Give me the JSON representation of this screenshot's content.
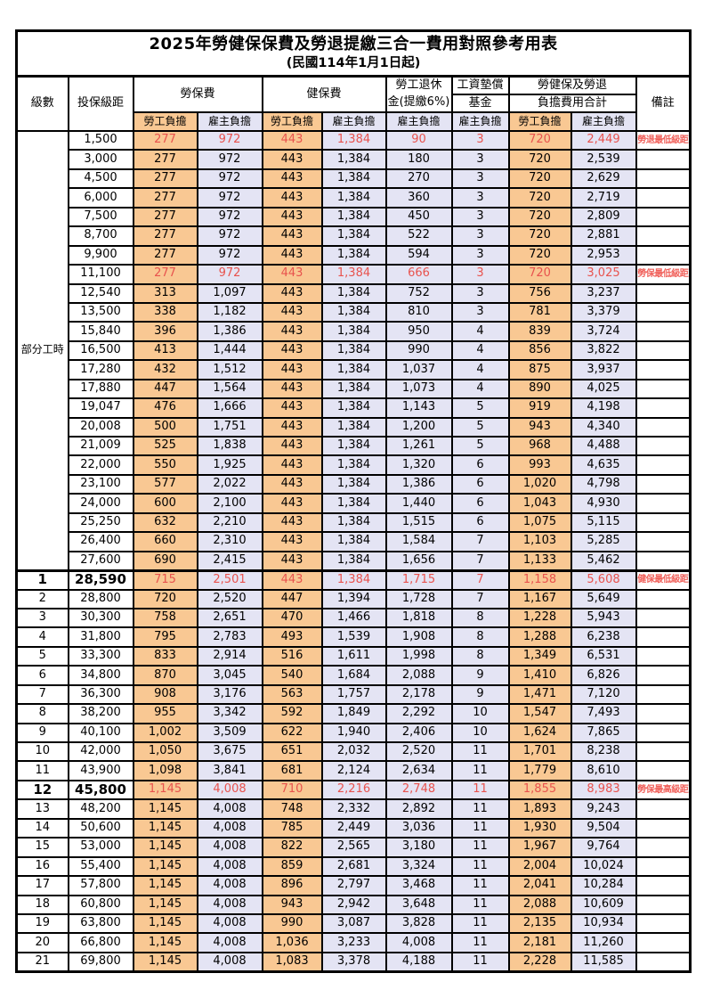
{
  "title": "2025年勞健保保費及勞退提繳三合一費用對照參考用表",
  "subtitle": "(民國114年1月1日起)",
  "colors": {
    "employee_burden_bg": "#F9C893",
    "employer_burden_bg": "#E4E4F4",
    "highlight_red": "#E8534E",
    "note_red": "#F0605A",
    "border": "#000000"
  },
  "header": {
    "level": "級數",
    "bracket": "投保級距",
    "labor_insurance": "勞保費",
    "health_insurance": "健保費",
    "pension_line1": "勞工退休",
    "pension_line2": "金(提繳6%)",
    "wage_fund_line1": "工資墊償",
    "wage_fund_line2": "基金",
    "total_line1": "勞健保及勞退",
    "total_line2": "負擔費用合計",
    "remark": "備註",
    "employee": "勞工負擔",
    "employer": "雇主負擔"
  },
  "part_time_label": "部分工時",
  "rows": [
    {
      "level": "",
      "bracket": "1,500",
      "li_emp": "277",
      "li_er": "972",
      "hi_emp": "443",
      "hi_er": "1,384",
      "pension": "90",
      "fund": "3",
      "tot_emp": "720",
      "tot_er": "2,449",
      "note": "勞退最低級距",
      "red": true,
      "bold": false
    },
    {
      "level": "",
      "bracket": "3,000",
      "li_emp": "277",
      "li_er": "972",
      "hi_emp": "443",
      "hi_er": "1,384",
      "pension": "180",
      "fund": "3",
      "tot_emp": "720",
      "tot_er": "2,539",
      "note": "",
      "red": false,
      "bold": false
    },
    {
      "level": "",
      "bracket": "4,500",
      "li_emp": "277",
      "li_er": "972",
      "hi_emp": "443",
      "hi_er": "1,384",
      "pension": "270",
      "fund": "3",
      "tot_emp": "720",
      "tot_er": "2,629",
      "note": "",
      "red": false,
      "bold": false
    },
    {
      "level": "",
      "bracket": "6,000",
      "li_emp": "277",
      "li_er": "972",
      "hi_emp": "443",
      "hi_er": "1,384",
      "pension": "360",
      "fund": "3",
      "tot_emp": "720",
      "tot_er": "2,719",
      "note": "",
      "red": false,
      "bold": false
    },
    {
      "level": "",
      "bracket": "7,500",
      "li_emp": "277",
      "li_er": "972",
      "hi_emp": "443",
      "hi_er": "1,384",
      "pension": "450",
      "fund": "3",
      "tot_emp": "720",
      "tot_er": "2,809",
      "note": "",
      "red": false,
      "bold": false
    },
    {
      "level": "",
      "bracket": "8,700",
      "li_emp": "277",
      "li_er": "972",
      "hi_emp": "443",
      "hi_er": "1,384",
      "pension": "522",
      "fund": "3",
      "tot_emp": "720",
      "tot_er": "2,881",
      "note": "",
      "red": false,
      "bold": false
    },
    {
      "level": "",
      "bracket": "9,900",
      "li_emp": "277",
      "li_er": "972",
      "hi_emp": "443",
      "hi_er": "1,384",
      "pension": "594",
      "fund": "3",
      "tot_emp": "720",
      "tot_er": "2,953",
      "note": "",
      "red": false,
      "bold": false
    },
    {
      "level": "",
      "bracket": "11,100",
      "li_emp": "277",
      "li_er": "972",
      "hi_emp": "443",
      "hi_er": "1,384",
      "pension": "666",
      "fund": "3",
      "tot_emp": "720",
      "tot_er": "3,025",
      "note": "勞保最低級距",
      "red": true,
      "bold": false
    },
    {
      "level": "",
      "bracket": "12,540",
      "li_emp": "313",
      "li_er": "1,097",
      "hi_emp": "443",
      "hi_er": "1,384",
      "pension": "752",
      "fund": "3",
      "tot_emp": "756",
      "tot_er": "3,237",
      "note": "",
      "red": false,
      "bold": false
    },
    {
      "level": "",
      "bracket": "13,500",
      "li_emp": "338",
      "li_er": "1,182",
      "hi_emp": "443",
      "hi_er": "1,384",
      "pension": "810",
      "fund": "3",
      "tot_emp": "781",
      "tot_er": "3,379",
      "note": "",
      "red": false,
      "bold": false
    },
    {
      "level": "",
      "bracket": "15,840",
      "li_emp": "396",
      "li_er": "1,386",
      "hi_emp": "443",
      "hi_er": "1,384",
      "pension": "950",
      "fund": "4",
      "tot_emp": "839",
      "tot_er": "3,724",
      "note": "",
      "red": false,
      "bold": false
    },
    {
      "level": "",
      "bracket": "16,500",
      "li_emp": "413",
      "li_er": "1,444",
      "hi_emp": "443",
      "hi_er": "1,384",
      "pension": "990",
      "fund": "4",
      "tot_emp": "856",
      "tot_er": "3,822",
      "note": "",
      "red": false,
      "bold": false
    },
    {
      "level": "",
      "bracket": "17,280",
      "li_emp": "432",
      "li_er": "1,512",
      "hi_emp": "443",
      "hi_er": "1,384",
      "pension": "1,037",
      "fund": "4",
      "tot_emp": "875",
      "tot_er": "3,937",
      "note": "",
      "red": false,
      "bold": false
    },
    {
      "level": "",
      "bracket": "17,880",
      "li_emp": "447",
      "li_er": "1,564",
      "hi_emp": "443",
      "hi_er": "1,384",
      "pension": "1,073",
      "fund": "4",
      "tot_emp": "890",
      "tot_er": "4,025",
      "note": "",
      "red": false,
      "bold": false
    },
    {
      "level": "",
      "bracket": "19,047",
      "li_emp": "476",
      "li_er": "1,666",
      "hi_emp": "443",
      "hi_er": "1,384",
      "pension": "1,143",
      "fund": "5",
      "tot_emp": "919",
      "tot_er": "4,198",
      "note": "",
      "red": false,
      "bold": false
    },
    {
      "level": "",
      "bracket": "20,008",
      "li_emp": "500",
      "li_er": "1,751",
      "hi_emp": "443",
      "hi_er": "1,384",
      "pension": "1,200",
      "fund": "5",
      "tot_emp": "943",
      "tot_er": "4,340",
      "note": "",
      "red": false,
      "bold": false
    },
    {
      "level": "",
      "bracket": "21,009",
      "li_emp": "525",
      "li_er": "1,838",
      "hi_emp": "443",
      "hi_er": "1,384",
      "pension": "1,261",
      "fund": "5",
      "tot_emp": "968",
      "tot_er": "4,488",
      "note": "",
      "red": false,
      "bold": false
    },
    {
      "level": "",
      "bracket": "22,000",
      "li_emp": "550",
      "li_er": "1,925",
      "hi_emp": "443",
      "hi_er": "1,384",
      "pension": "1,320",
      "fund": "6",
      "tot_emp": "993",
      "tot_er": "4,635",
      "note": "",
      "red": false,
      "bold": false
    },
    {
      "level": "",
      "bracket": "23,100",
      "li_emp": "577",
      "li_er": "2,022",
      "hi_emp": "443",
      "hi_er": "1,384",
      "pension": "1,386",
      "fund": "6",
      "tot_emp": "1,020",
      "tot_er": "4,798",
      "note": "",
      "red": false,
      "bold": false
    },
    {
      "level": "",
      "bracket": "24,000",
      "li_emp": "600",
      "li_er": "2,100",
      "hi_emp": "443",
      "hi_er": "1,384",
      "pension": "1,440",
      "fund": "6",
      "tot_emp": "1,043",
      "tot_er": "4,930",
      "note": "",
      "red": false,
      "bold": false
    },
    {
      "level": "",
      "bracket": "25,250",
      "li_emp": "632",
      "li_er": "2,210",
      "hi_emp": "443",
      "hi_er": "1,384",
      "pension": "1,515",
      "fund": "6",
      "tot_emp": "1,075",
      "tot_er": "5,115",
      "note": "",
      "red": false,
      "bold": false
    },
    {
      "level": "",
      "bracket": "26,400",
      "li_emp": "660",
      "li_er": "2,310",
      "hi_emp": "443",
      "hi_er": "1,384",
      "pension": "1,584",
      "fund": "7",
      "tot_emp": "1,103",
      "tot_er": "5,285",
      "note": "",
      "red": false,
      "bold": false
    },
    {
      "level": "",
      "bracket": "27,600",
      "li_emp": "690",
      "li_er": "2,415",
      "hi_emp": "443",
      "hi_er": "1,384",
      "pension": "1,656",
      "fund": "7",
      "tot_emp": "1,133",
      "tot_er": "5,462",
      "note": "",
      "red": false,
      "bold": false
    },
    {
      "level": "1",
      "bracket": "28,590",
      "li_emp": "715",
      "li_er": "2,501",
      "hi_emp": "443",
      "hi_er": "1,384",
      "pension": "1,715",
      "fund": "7",
      "tot_emp": "1,158",
      "tot_er": "5,608",
      "note": "健保最低級距",
      "red": true,
      "bold": true
    },
    {
      "level": "2",
      "bracket": "28,800",
      "li_emp": "720",
      "li_er": "2,520",
      "hi_emp": "447",
      "hi_er": "1,394",
      "pension": "1,728",
      "fund": "7",
      "tot_emp": "1,167",
      "tot_er": "5,649",
      "note": "",
      "red": false,
      "bold": false
    },
    {
      "level": "3",
      "bracket": "30,300",
      "li_emp": "758",
      "li_er": "2,651",
      "hi_emp": "470",
      "hi_er": "1,466",
      "pension": "1,818",
      "fund": "8",
      "tot_emp": "1,228",
      "tot_er": "5,943",
      "note": "",
      "red": false,
      "bold": false
    },
    {
      "level": "4",
      "bracket": "31,800",
      "li_emp": "795",
      "li_er": "2,783",
      "hi_emp": "493",
      "hi_er": "1,539",
      "pension": "1,908",
      "fund": "8",
      "tot_emp": "1,288",
      "tot_er": "6,238",
      "note": "",
      "red": false,
      "bold": false
    },
    {
      "level": "5",
      "bracket": "33,300",
      "li_emp": "833",
      "li_er": "2,914",
      "hi_emp": "516",
      "hi_er": "1,611",
      "pension": "1,998",
      "fund": "8",
      "tot_emp": "1,349",
      "tot_er": "6,531",
      "note": "",
      "red": false,
      "bold": false
    },
    {
      "level": "6",
      "bracket": "34,800",
      "li_emp": "870",
      "li_er": "3,045",
      "hi_emp": "540",
      "hi_er": "1,684",
      "pension": "2,088",
      "fund": "9",
      "tot_emp": "1,410",
      "tot_er": "6,826",
      "note": "",
      "red": false,
      "bold": false
    },
    {
      "level": "7",
      "bracket": "36,300",
      "li_emp": "908",
      "li_er": "3,176",
      "hi_emp": "563",
      "hi_er": "1,757",
      "pension": "2,178",
      "fund": "9",
      "tot_emp": "1,471",
      "tot_er": "7,120",
      "note": "",
      "red": false,
      "bold": false
    },
    {
      "level": "8",
      "bracket": "38,200",
      "li_emp": "955",
      "li_er": "3,342",
      "hi_emp": "592",
      "hi_er": "1,849",
      "pension": "2,292",
      "fund": "10",
      "tot_emp": "1,547",
      "tot_er": "7,493",
      "note": "",
      "red": false,
      "bold": false
    },
    {
      "level": "9",
      "bracket": "40,100",
      "li_emp": "1,002",
      "li_er": "3,509",
      "hi_emp": "622",
      "hi_er": "1,940",
      "pension": "2,406",
      "fund": "10",
      "tot_emp": "1,624",
      "tot_er": "7,865",
      "note": "",
      "red": false,
      "bold": false
    },
    {
      "level": "10",
      "bracket": "42,000",
      "li_emp": "1,050",
      "li_er": "3,675",
      "hi_emp": "651",
      "hi_er": "2,032",
      "pension": "2,520",
      "fund": "11",
      "tot_emp": "1,701",
      "tot_er": "8,238",
      "note": "",
      "red": false,
      "bold": false
    },
    {
      "level": "11",
      "bracket": "43,900",
      "li_emp": "1,098",
      "li_er": "3,841",
      "hi_emp": "681",
      "hi_er": "2,124",
      "pension": "2,634",
      "fund": "11",
      "tot_emp": "1,779",
      "tot_er": "8,610",
      "note": "",
      "red": false,
      "bold": false
    },
    {
      "level": "12",
      "bracket": "45,800",
      "li_emp": "1,145",
      "li_er": "4,008",
      "hi_emp": "710",
      "hi_er": "2,216",
      "pension": "2,748",
      "fund": "11",
      "tot_emp": "1,855",
      "tot_er": "8,983",
      "note": "勞保最高級距",
      "red": true,
      "bold": true
    },
    {
      "level": "13",
      "bracket": "48,200",
      "li_emp": "1,145",
      "li_er": "4,008",
      "hi_emp": "748",
      "hi_er": "2,332",
      "pension": "2,892",
      "fund": "11",
      "tot_emp": "1,893",
      "tot_er": "9,243",
      "note": "",
      "red": false,
      "bold": false
    },
    {
      "level": "14",
      "bracket": "50,600",
      "li_emp": "1,145",
      "li_er": "4,008",
      "hi_emp": "785",
      "hi_er": "2,449",
      "pension": "3,036",
      "fund": "11",
      "tot_emp": "1,930",
      "tot_er": "9,504",
      "note": "",
      "red": false,
      "bold": false
    },
    {
      "level": "15",
      "bracket": "53,000",
      "li_emp": "1,145",
      "li_er": "4,008",
      "hi_emp": "822",
      "hi_er": "2,565",
      "pension": "3,180",
      "fund": "11",
      "tot_emp": "1,967",
      "tot_er": "9,764",
      "note": "",
      "red": false,
      "bold": false
    },
    {
      "level": "16",
      "bracket": "55,400",
      "li_emp": "1,145",
      "li_er": "4,008",
      "hi_emp": "859",
      "hi_er": "2,681",
      "pension": "3,324",
      "fund": "11",
      "tot_emp": "2,004",
      "tot_er": "10,024",
      "note": "",
      "red": false,
      "bold": false
    },
    {
      "level": "17",
      "bracket": "57,800",
      "li_emp": "1,145",
      "li_er": "4,008",
      "hi_emp": "896",
      "hi_er": "2,797",
      "pension": "3,468",
      "fund": "11",
      "tot_emp": "2,041",
      "tot_er": "10,284",
      "note": "",
      "red": false,
      "bold": false
    },
    {
      "level": "18",
      "bracket": "60,800",
      "li_emp": "1,145",
      "li_er": "4,008",
      "hi_emp": "943",
      "hi_er": "2,942",
      "pension": "3,648",
      "fund": "11",
      "tot_emp": "2,088",
      "tot_er": "10,609",
      "note": "",
      "red": false,
      "bold": false
    },
    {
      "level": "19",
      "bracket": "63,800",
      "li_emp": "1,145",
      "li_er": "4,008",
      "hi_emp": "990",
      "hi_er": "3,087",
      "pension": "3,828",
      "fund": "11",
      "tot_emp": "2,135",
      "tot_er": "10,934",
      "note": "",
      "red": false,
      "bold": false
    },
    {
      "level": "20",
      "bracket": "66,800",
      "li_emp": "1,145",
      "li_er": "4,008",
      "hi_emp": "1,036",
      "hi_er": "3,233",
      "pension": "4,008",
      "fund": "11",
      "tot_emp": "2,181",
      "tot_er": "11,260",
      "note": "",
      "red": false,
      "bold": false
    },
    {
      "level": "21",
      "bracket": "69,800",
      "li_emp": "1,145",
      "li_er": "4,008",
      "hi_emp": "1,083",
      "hi_er": "3,378",
      "pension": "4,188",
      "fund": "11",
      "tot_emp": "2,228",
      "tot_er": "11,585",
      "note": "",
      "red": false,
      "bold": false
    }
  ]
}
